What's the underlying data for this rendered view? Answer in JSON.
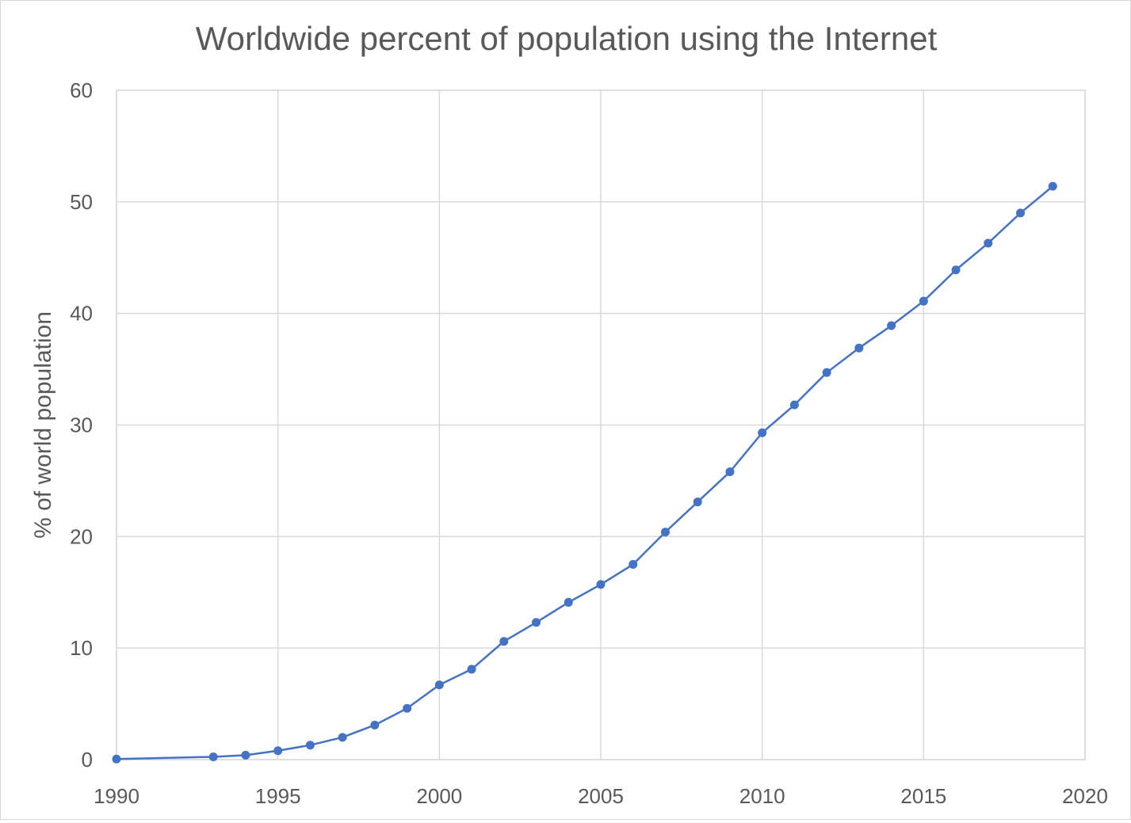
{
  "chart_data": {
    "type": "line",
    "title": "Worldwide percent of population using the Internet",
    "xlabel": "",
    "ylabel": "% of world population",
    "xlim": [
      1990,
      2020
    ],
    "ylim": [
      0,
      60
    ],
    "x_ticks": [
      1990,
      1995,
      2000,
      2005,
      2010,
      2015,
      2020
    ],
    "y_ticks": [
      0,
      10,
      20,
      30,
      40,
      50,
      60
    ],
    "grid": true,
    "legend": "none",
    "series": [
      {
        "name": "% of world population",
        "color": "#4472c4",
        "x": [
          1990,
          1993,
          1994,
          1995,
          1996,
          1997,
          1998,
          1999,
          2000,
          2001,
          2002,
          2003,
          2004,
          2005,
          2006,
          2007,
          2008,
          2009,
          2010,
          2011,
          2012,
          2013,
          2014,
          2015,
          2016,
          2017,
          2018,
          2019
        ],
        "y": [
          0.05,
          0.25,
          0.4,
          0.8,
          1.3,
          2.0,
          3.1,
          4.6,
          6.7,
          8.1,
          10.6,
          12.3,
          14.1,
          15.7,
          17.5,
          20.4,
          23.1,
          25.8,
          29.3,
          31.8,
          34.7,
          36.9,
          38.9,
          41.1,
          43.9,
          46.3,
          49.0,
          51.4
        ]
      }
    ]
  }
}
